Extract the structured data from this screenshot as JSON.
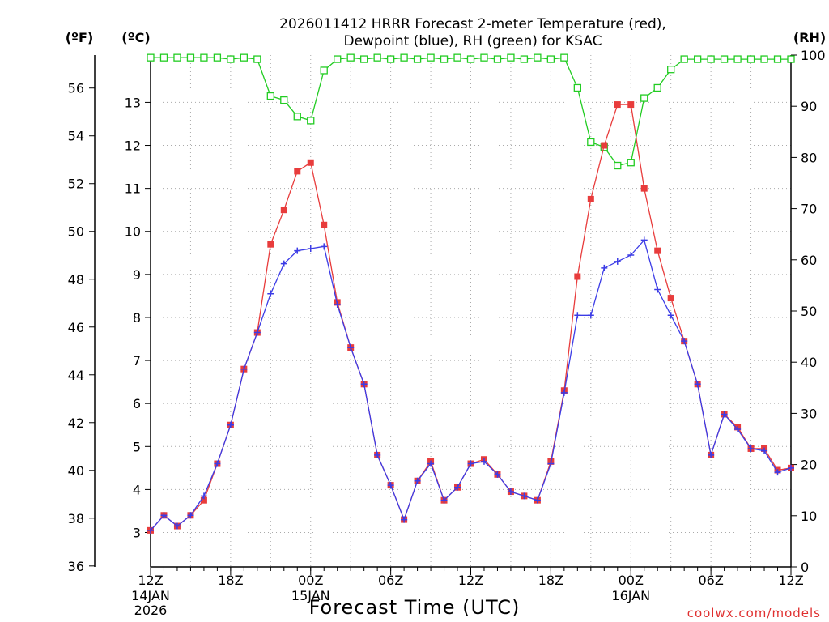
{
  "chart_data": {
    "type": "line",
    "title_line1": "2026011412 HRRR Forecast 2-meter Temperature (red),",
    "title_line2": "Dewpoint (blue), RH (green) for KSAC",
    "xlabel": "Forecast Time (UTC)",
    "credit": "coolwx.com/models",
    "units": {
      "left_f": "(ºF)",
      "left_c": "(ºC)",
      "right_rh": "(RH)"
    },
    "x_hours": [
      0,
      1,
      2,
      3,
      4,
      5,
      6,
      7,
      8,
      9,
      10,
      11,
      12,
      13,
      14,
      15,
      16,
      17,
      18,
      19,
      20,
      21,
      22,
      23,
      24,
      25,
      26,
      27,
      28,
      29,
      30,
      31,
      32,
      33,
      34,
      35,
      36,
      37,
      38,
      39,
      40,
      41,
      42,
      43,
      44,
      45,
      46,
      47,
      48
    ],
    "x_ticks": [
      {
        "hour": 0,
        "label": "12Z",
        "sub1": "14JAN",
        "sub2": "2026"
      },
      {
        "hour": 6,
        "label": "18Z",
        "sub1": "",
        "sub2": ""
      },
      {
        "hour": 12,
        "label": "00Z",
        "sub1": "15JAN",
        "sub2": ""
      },
      {
        "hour": 18,
        "label": "06Z",
        "sub1": "",
        "sub2": ""
      },
      {
        "hour": 24,
        "label": "12Z",
        "sub1": "",
        "sub2": ""
      },
      {
        "hour": 30,
        "label": "18Z",
        "sub1": "",
        "sub2": ""
      },
      {
        "hour": 36,
        "label": "00Z",
        "sub1": "16JAN",
        "sub2": ""
      },
      {
        "hour": 42,
        "label": "06Z",
        "sub1": "",
        "sub2": ""
      },
      {
        "hour": 48,
        "label": "12Z",
        "sub1": "",
        "sub2": ""
      }
    ],
    "y_f_ticks": [
      36,
      38,
      40,
      42,
      44,
      46,
      48,
      50,
      52,
      54,
      56
    ],
    "y_c_ticks": [
      3,
      4,
      5,
      6,
      7,
      8,
      9,
      10,
      11,
      12,
      13
    ],
    "y_rh_ticks": [
      0,
      10,
      20,
      30,
      40,
      50,
      60,
      70,
      80,
      90,
      100
    ],
    "ylim_c": [
      2.2,
      14.1
    ],
    "ylim_rh": [
      0,
      100
    ],
    "series": [
      {
        "name": "Temperature",
        "unit": "ºC",
        "color": "#e83c3c",
        "marker": "filled-square",
        "values": [
          3.05,
          3.4,
          3.15,
          3.4,
          3.75,
          4.6,
          5.5,
          6.8,
          7.65,
          9.7,
          10.5,
          11.4,
          11.6,
          10.15,
          8.35,
          7.3,
          6.45,
          4.8,
          4.1,
          3.3,
          4.2,
          4.65,
          3.75,
          4.05,
          4.6,
          4.7,
          4.35,
          3.95,
          3.85,
          3.75,
          4.65,
          6.3,
          8.95,
          10.75,
          12.0,
          12.95,
          12.95,
          11.0,
          9.55,
          8.45,
          7.45,
          6.45,
          4.8,
          5.75,
          5.45,
          4.95,
          4.95,
          4.45,
          4.5
        ]
      },
      {
        "name": "Dewpoint",
        "unit": "ºC",
        "color": "#3c3ce6",
        "marker": "plus",
        "values": [
          3.05,
          3.4,
          3.15,
          3.4,
          3.85,
          4.6,
          5.5,
          6.8,
          7.65,
          8.55,
          9.25,
          9.55,
          9.6,
          9.65,
          8.3,
          7.3,
          6.45,
          4.8,
          4.1,
          3.3,
          4.2,
          4.6,
          3.75,
          4.05,
          4.6,
          4.65,
          4.35,
          3.95,
          3.85,
          3.75,
          4.6,
          6.25,
          8.05,
          8.05,
          9.15,
          9.3,
          9.45,
          9.8,
          8.65,
          8.05,
          7.45,
          6.45,
          4.8,
          5.75,
          5.4,
          4.95,
          4.9,
          4.4,
          4.5
        ]
      },
      {
        "name": "RH",
        "unit": "%",
        "color": "#22cc22",
        "marker": "open-square",
        "values": [
          99.5,
          99.5,
          99.5,
          99.5,
          99.5,
          99.5,
          99.2,
          99.5,
          99.2,
          92,
          91.2,
          88,
          87.2,
          97,
          99.2,
          99.5,
          99.2,
          99.5,
          99.2,
          99.5,
          99.2,
          99.5,
          99.2,
          99.5,
          99.2,
          99.5,
          99.2,
          99.5,
          99.2,
          99.5,
          99.2,
          99.5,
          93.6,
          83,
          82,
          78.4,
          79,
          91.6,
          93.6,
          97.2,
          99.2,
          99.2,
          99.2,
          99.2,
          99.2,
          99.2,
          99.2,
          99.2,
          99.2
        ]
      }
    ],
    "grid": true
  }
}
